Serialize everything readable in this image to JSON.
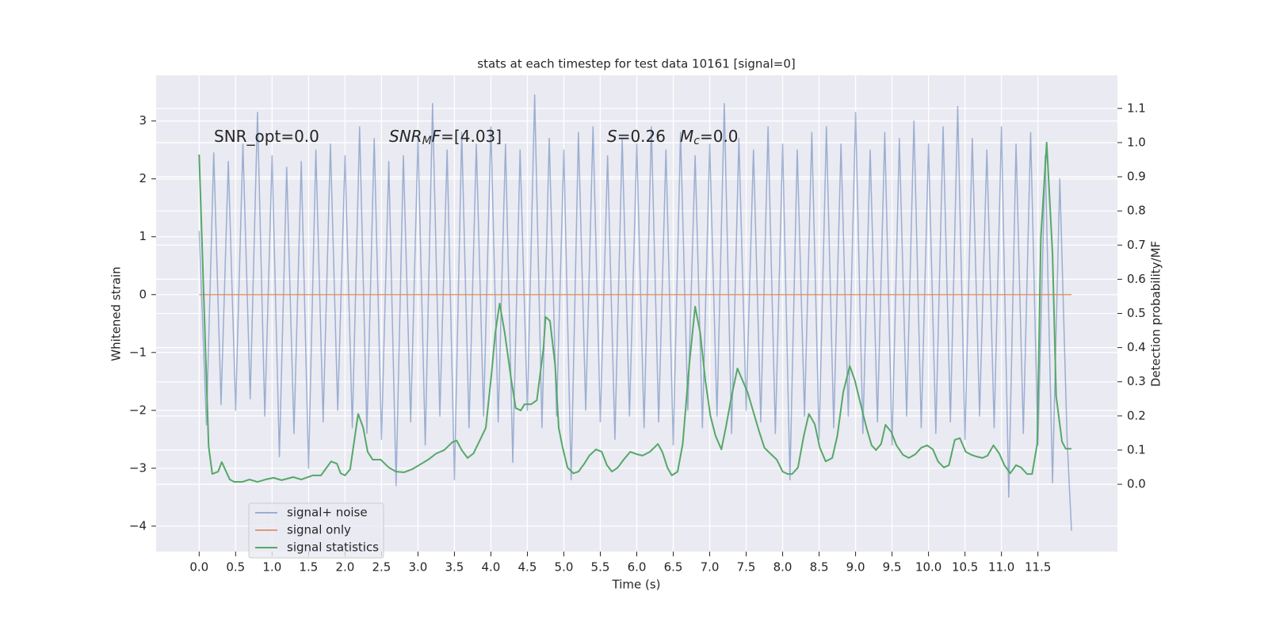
{
  "chart_data": {
    "type": "line",
    "title": "stats at each timestep for test data 10161 [signal=0]",
    "xlabel": "Time (s)",
    "ylabel": "Whitened strain",
    "y2label": "Detection probability/MF",
    "xlim": [
      -0.59,
      12.59
    ],
    "ylim": [
      -4.44,
      3.79
    ],
    "y2lim": [
      -0.197,
      1.197
    ],
    "grid": true,
    "legend": "lower left",
    "xticks": [
      {
        "value": 0,
        "label": "0.0"
      },
      0.5,
      {
        "value": 1,
        "label": "1.0"
      },
      1.5,
      {
        "value": 2,
        "label": "2.0"
      },
      2.5,
      {
        "value": 3,
        "label": "3.0"
      },
      3.5,
      {
        "value": 4,
        "label": "4.0"
      },
      4.5,
      {
        "value": 5,
        "label": "5.0"
      },
      5.5,
      {
        "value": 6,
        "label": "6.0"
      },
      6.5,
      {
        "value": 7,
        "label": "7.0"
      },
      7.5,
      {
        "value": 8,
        "label": "8.0"
      },
      8.5,
      {
        "value": 9,
        "label": "9.0"
      },
      9.5,
      {
        "value": 10,
        "label": "10.0"
      },
      10.5,
      {
        "value": 11,
        "label": "11.0"
      },
      11.5
    ],
    "yticks": [
      {
        "value": -4,
        "label": "−4"
      },
      {
        "value": -3,
        "label": "−3"
      },
      {
        "value": -2,
        "label": "−2"
      },
      {
        "value": -1,
        "label": "−1"
      },
      0,
      1,
      2,
      3
    ],
    "y2ticks": [
      {
        "value": 0,
        "label": "0.0"
      },
      0.1,
      0.2,
      0.3,
      0.4,
      0.5,
      0.6,
      0.7,
      0.8,
      0.9,
      {
        "value": 1,
        "label": "1.0"
      },
      1.1
    ],
    "annotations": [
      {
        "parts": [
          {
            "text": "SNR_opt=0.0"
          }
        ]
      },
      {
        "parts": [
          {
            "text": "SNR",
            "italic": true
          },
          {
            "text": "M",
            "italic": true,
            "sub": true
          },
          {
            "text": "F",
            "italic": true
          },
          {
            "text": "=[4.03]"
          }
        ]
      },
      {
        "parts": [
          {
            "text": "S",
            "italic": true
          },
          {
            "text": "=0.26"
          }
        ]
      },
      {
        "parts": [
          {
            "text": "M",
            "italic": true
          },
          {
            "text": "c",
            "italic": true,
            "sub": true
          },
          {
            "text": "=0.0"
          }
        ]
      }
    ],
    "series": [
      {
        "name": "signal+ noise",
        "color": "#4c72b0",
        "opacity": 0.5,
        "x": [
          0,
          0.1,
          0.2,
          0.3,
          0.4,
          0.5,
          0.6,
          0.7,
          0.8,
          0.9,
          1,
          1.1,
          1.2,
          1.3,
          1.4,
          1.5,
          1.6,
          1.7,
          1.8,
          1.9,
          2,
          2.1,
          2.2,
          2.3,
          2.4,
          2.5,
          2.6,
          2.7,
          2.8,
          2.9,
          3,
          3.1,
          3.2,
          3.3,
          3.4,
          3.5,
          3.6,
          3.7,
          3.8,
          3.9,
          4,
          4.1,
          4.2,
          4.3,
          4.4,
          4.5,
          4.6,
          4.7,
          4.8,
          4.9,
          5,
          5.1,
          5.2,
          5.3,
          5.4,
          5.5,
          5.6,
          5.7,
          5.8,
          5.9,
          6,
          6.1,
          6.2,
          6.3,
          6.4,
          6.5,
          6.6,
          6.7,
          6.8,
          6.9,
          7,
          7.1,
          7.2,
          7.3,
          7.4,
          7.5,
          7.6,
          7.7,
          7.8,
          7.9,
          8,
          8.1,
          8.2,
          8.3,
          8.4,
          8.5,
          8.6,
          8.7,
          8.8,
          8.9,
          9,
          9.1,
          9.2,
          9.3,
          9.4,
          9.5,
          9.6,
          9.7,
          9.8,
          9.9,
          10,
          10.1,
          10.2,
          10.3,
          10.4,
          10.5,
          10.6,
          10.7,
          10.8,
          10.9,
          11,
          11.1,
          11.2,
          11.3,
          11.4,
          11.5,
          11.6,
          11.7,
          11.8,
          11.9,
          11.96
        ],
        "values": [
          1.1,
          -2.25,
          2.45,
          -1.9,
          2.3,
          -2.0,
          2.6,
          -1.8,
          3.15,
          -2.1,
          2.4,
          -2.8,
          2.2,
          -2.4,
          2.3,
          -3.0,
          2.5,
          -2.2,
          2.6,
          -2.0,
          2.4,
          -2.3,
          2.9,
          -2.4,
          2.7,
          -2.5,
          2.3,
          -3.3,
          2.4,
          -2.2,
          2.7,
          -2.6,
          3.3,
          -2.1,
          2.5,
          -3.2,
          2.8,
          -2.3,
          2.6,
          -2.1,
          2.9,
          -2.2,
          2.6,
          -2.9,
          2.5,
          -2.0,
          3.45,
          -2.3,
          2.7,
          -2.1,
          2.5,
          -3.2,
          2.8,
          -2.0,
          2.9,
          -2.2,
          2.4,
          -2.5,
          2.7,
          -2.1,
          2.6,
          -2.3,
          2.9,
          -2.2,
          2.5,
          -2.6,
          2.8,
          -2.0,
          2.4,
          -2.3,
          2.6,
          -2.1,
          3.3,
          -2.4,
          2.7,
          -2.0,
          2.5,
          -2.2,
          2.9,
          -2.4,
          2.6,
          -3.2,
          2.5,
          -2.1,
          2.8,
          -2.5,
          2.9,
          -2.3,
          2.6,
          -2.1,
          3.15,
          -2.4,
          2.5,
          -2.2,
          2.8,
          -2.6,
          2.7,
          -2.1,
          3.0,
          -2.3,
          2.6,
          -2.4,
          2.9,
          -2.2,
          3.25,
          -2.5,
          2.7,
          -2.1,
          2.5,
          -2.3,
          2.9,
          -3.5,
          2.6,
          -2.4,
          2.8,
          -2.6,
          2.4,
          -3.25,
          2.0,
          -2.5,
          -4.08
        ]
      },
      {
        "name": "signal only",
        "color": "#dd8452",
        "opacity": 0.8,
        "x": [
          0,
          11.96
        ],
        "values": [
          0,
          0
        ]
      },
      {
        "name": "signal statistics",
        "color": "#55a868",
        "opacity": 1,
        "axis": "y2",
        "x": [
          0,
          0.13,
          0.18,
          0.26,
          0.31,
          0.42,
          0.48,
          0.59,
          0.69,
          0.8,
          0.91,
          1.02,
          1.13,
          1.29,
          1.4,
          1.56,
          1.67,
          1.81,
          1.89,
          1.94,
          2.0,
          2.07,
          2.18,
          2.25,
          2.31,
          2.38,
          2.49,
          2.6,
          2.7,
          2.81,
          2.92,
          3.03,
          3.14,
          3.25,
          3.36,
          3.47,
          3.53,
          3.6,
          3.68,
          3.76,
          3.84,
          3.93,
          4.01,
          4.06,
          4.12,
          4.19,
          4.28,
          4.34,
          4.41,
          4.46,
          4.55,
          4.63,
          4.72,
          4.75,
          4.81,
          4.88,
          4.93,
          4.98,
          5.05,
          5.13,
          5.2,
          5.28,
          5.35,
          5.44,
          5.52,
          5.59,
          5.66,
          5.74,
          5.82,
          5.91,
          6.0,
          6.08,
          6.18,
          6.29,
          6.35,
          6.42,
          6.48,
          6.56,
          6.63,
          6.72,
          6.8,
          6.87,
          6.94,
          7.01,
          7.08,
          7.16,
          7.22,
          7.3,
          7.38,
          7.45,
          7.52,
          7.6,
          7.68,
          7.75,
          7.83,
          7.92,
          8.0,
          8.07,
          8.13,
          8.21,
          8.29,
          8.36,
          8.44,
          8.51,
          8.59,
          8.68,
          8.75,
          8.83,
          8.92,
          8.99,
          9.07,
          9.15,
          9.22,
          9.28,
          9.35,
          9.41,
          9.49,
          9.56,
          9.65,
          9.73,
          9.82,
          9.9,
          9.98,
          10.06,
          10.13,
          10.21,
          10.28,
          10.36,
          10.43,
          10.51,
          10.59,
          10.66,
          10.74,
          10.81,
          10.89,
          10.97,
          11.04,
          11.12,
          11.2,
          11.27,
          11.35,
          11.42,
          11.49,
          11.54,
          11.62,
          11.7,
          11.75,
          11.83,
          11.88,
          11.96
        ],
        "values": [
          0.965,
          0.111,
          0.03,
          0.037,
          0.065,
          0.014,
          0.007,
          0.007,
          0.014,
          0.007,
          0.014,
          0.019,
          0.012,
          0.021,
          0.014,
          0.026,
          0.026,
          0.067,
          0.06,
          0.032,
          0.026,
          0.044,
          0.206,
          0.165,
          0.095,
          0.072,
          0.072,
          0.049,
          0.037,
          0.035,
          0.044,
          0.058,
          0.072,
          0.09,
          0.1,
          0.123,
          0.128,
          0.1,
          0.077,
          0.09,
          0.125,
          0.165,
          0.327,
          0.443,
          0.529,
          0.443,
          0.304,
          0.223,
          0.216,
          0.234,
          0.234,
          0.246,
          0.397,
          0.49,
          0.478,
          0.35,
          0.165,
          0.111,
          0.049,
          0.032,
          0.037,
          0.06,
          0.084,
          0.102,
          0.095,
          0.056,
          0.037,
          0.049,
          0.072,
          0.095,
          0.088,
          0.084,
          0.095,
          0.118,
          0.095,
          0.049,
          0.026,
          0.037,
          0.118,
          0.35,
          0.52,
          0.443,
          0.304,
          0.2,
          0.142,
          0.102,
          0.165,
          0.258,
          0.339,
          0.304,
          0.269,
          0.211,
          0.153,
          0.107,
          0.09,
          0.072,
          0.037,
          0.03,
          0.03,
          0.049,
          0.142,
          0.206,
          0.176,
          0.107,
          0.067,
          0.077,
          0.142,
          0.269,
          0.346,
          0.304,
          0.234,
          0.165,
          0.114,
          0.1,
          0.118,
          0.174,
          0.153,
          0.114,
          0.086,
          0.077,
          0.088,
          0.107,
          0.114,
          0.102,
          0.067,
          0.049,
          0.056,
          0.13,
          0.135,
          0.095,
          0.086,
          0.081,
          0.077,
          0.084,
          0.114,
          0.09,
          0.056,
          0.032,
          0.056,
          0.049,
          0.03,
          0.03,
          0.118,
          0.72,
          1.0,
          0.675,
          0.258,
          0.125,
          0.104,
          0.104
        ]
      }
    ]
  }
}
